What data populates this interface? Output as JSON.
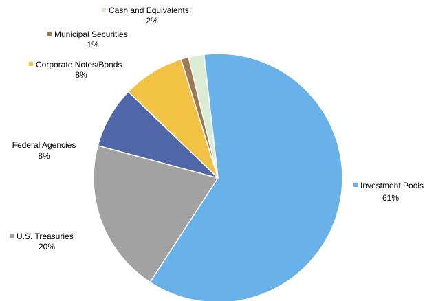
{
  "chart_data": {
    "type": "pie",
    "title": "",
    "slices": [
      {
        "name": "Investment Pools",
        "value": 61,
        "label": "61%",
        "color": "#68b1e9"
      },
      {
        "name": "U.S. Treasuries",
        "value": 20,
        "label": "20%",
        "color": "#a2a2a2"
      },
      {
        "name": "Federal Agencies",
        "value": 8,
        "label": "8%",
        "color": "#4f67a8"
      },
      {
        "name": "Corporate Notes/Bonds",
        "value": 8,
        "label": "8%",
        "color": "#f2c244"
      },
      {
        "name": "Municipal Securities",
        "value": 1,
        "label": "1%",
        "color": "#9c7a55"
      },
      {
        "name": "Cash and Equivalents",
        "value": 2,
        "label": "2%",
        "color": "#dcebd3"
      }
    ],
    "legend": "none",
    "data_labels": "outside, category name and percent"
  }
}
